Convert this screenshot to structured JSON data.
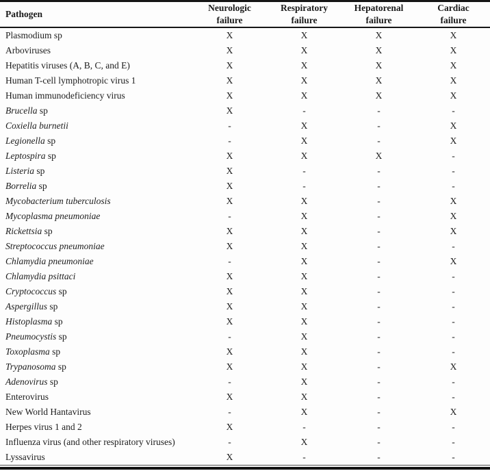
{
  "table": {
    "header": {
      "pathogen_label": "Pathogen",
      "failure_columns": [
        "Neurologic failure",
        "Respiratory failure",
        "Hepatorenal failure",
        "Cardiac failure"
      ]
    },
    "legend": {
      "mark_present": "X",
      "mark_absent": "-"
    },
    "colors": {
      "text": "#1c1c1c",
      "border": "#161616",
      "background": "#fdfdfd"
    },
    "rows": [
      {
        "name_italic": "",
        "name_plain": "Plasmodium sp",
        "marks": [
          "X",
          "X",
          "X",
          "X"
        ]
      },
      {
        "name_italic": "",
        "name_plain": "Arboviruses",
        "marks": [
          "X",
          "X",
          "X",
          "X"
        ]
      },
      {
        "name_italic": "",
        "name_plain": "Hepatitis viruses (A, B, C, and E)",
        "marks": [
          "X",
          "X",
          "X",
          "X"
        ]
      },
      {
        "name_italic": "",
        "name_plain": "Human T-cell lymphotropic virus 1",
        "marks": [
          "X",
          "X",
          "X",
          "X"
        ]
      },
      {
        "name_italic": "",
        "name_plain": "Human immunodeficiency virus",
        "marks": [
          "X",
          "X",
          "X",
          "X"
        ]
      },
      {
        "name_italic": "Brucella",
        "name_plain": " sp",
        "marks": [
          "X",
          "-",
          "-",
          "-"
        ]
      },
      {
        "name_italic": "Coxiella burnetii",
        "name_plain": "",
        "marks": [
          "-",
          "X",
          "-",
          "X"
        ]
      },
      {
        "name_italic": "Legionella",
        "name_plain": " sp",
        "marks": [
          "-",
          "X",
          "-",
          "X"
        ]
      },
      {
        "name_italic": "Leptospira",
        "name_plain": " sp",
        "marks": [
          "X",
          "X",
          "X",
          "-"
        ]
      },
      {
        "name_italic": "Listeria",
        "name_plain": " sp",
        "marks": [
          "X",
          "-",
          "-",
          "-"
        ]
      },
      {
        "name_italic": "Borrelia",
        "name_plain": " sp",
        "marks": [
          "X",
          "-",
          "-",
          "-"
        ]
      },
      {
        "name_italic": "Mycobacterium tuberculosis",
        "name_plain": "",
        "marks": [
          "X",
          "X",
          "-",
          "X"
        ]
      },
      {
        "name_italic": "Mycoplasma pneumoniae",
        "name_plain": "",
        "marks": [
          "-",
          "X",
          "-",
          "X"
        ]
      },
      {
        "name_italic": "Rickettsia",
        "name_plain": " sp",
        "marks": [
          "X",
          "X",
          "-",
          "X"
        ]
      },
      {
        "name_italic": "Streptococcus pneumoniae",
        "name_plain": "",
        "marks": [
          "X",
          "X",
          "-",
          "-"
        ]
      },
      {
        "name_italic": "Chlamydia pneumoniae",
        "name_plain": "",
        "marks": [
          "-",
          "X",
          "-",
          "X"
        ]
      },
      {
        "name_italic": "Chlamydia psittaci",
        "name_plain": "",
        "marks": [
          "X",
          "X",
          "-",
          "-"
        ]
      },
      {
        "name_italic": "Cryptococcus",
        "name_plain": " sp",
        "marks": [
          "X",
          "X",
          "-",
          "-"
        ]
      },
      {
        "name_italic": "Aspergillus",
        "name_plain": " sp",
        "marks": [
          "X",
          "X",
          "-",
          "-"
        ]
      },
      {
        "name_italic": "Histoplasma",
        "name_plain": " sp",
        "marks": [
          "X",
          "X",
          "-",
          "-"
        ]
      },
      {
        "name_italic": "Pneumocystis",
        "name_plain": " sp",
        "marks": [
          "-",
          "X",
          "-",
          "-"
        ]
      },
      {
        "name_italic": "Toxoplasma",
        "name_plain": " sp",
        "marks": [
          "X",
          "X",
          "-",
          "-"
        ]
      },
      {
        "name_italic": "Trypanosoma",
        "name_plain": " sp",
        "marks": [
          "X",
          "X",
          "-",
          "X"
        ]
      },
      {
        "name_italic": "Adenovirus",
        "name_plain": " sp",
        "marks": [
          "-",
          "X",
          "-",
          "-"
        ]
      },
      {
        "name_italic": "",
        "name_plain": "Enterovirus",
        "marks": [
          "X",
          "X",
          "-",
          "-"
        ]
      },
      {
        "name_italic": "",
        "name_plain": "New World Hantavirus",
        "marks": [
          "-",
          "X",
          "-",
          "X"
        ]
      },
      {
        "name_italic": "",
        "name_plain": "Herpes virus 1 and 2",
        "marks": [
          "X",
          "-",
          "-",
          "-"
        ]
      },
      {
        "name_italic": "",
        "name_plain": "Influenza virus (and other respiratory viruses)",
        "marks": [
          "-",
          "X",
          "-",
          "-"
        ]
      },
      {
        "name_italic": "",
        "name_plain": "Lyssavirus",
        "marks": [
          "X",
          "-",
          "-",
          "-"
        ]
      }
    ]
  }
}
